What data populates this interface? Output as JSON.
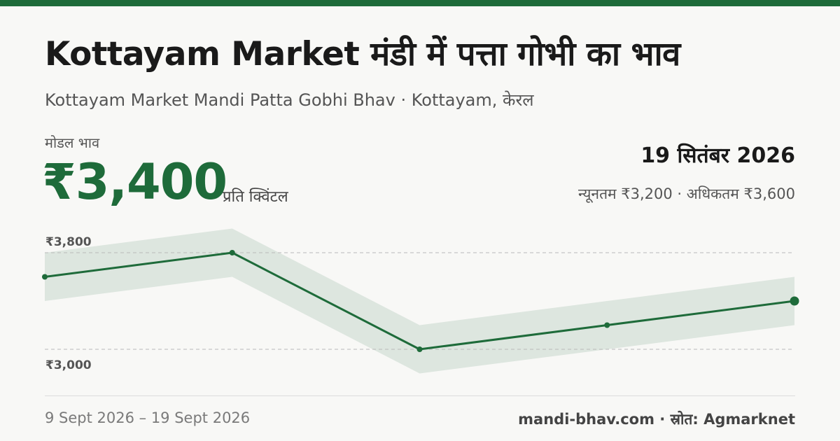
{
  "header": {
    "title": "Kottayam Market मंडी में पत्ता गोभी का भाव",
    "subtitle": "Kottayam Market Mandi Patta Gobhi Bhav · Kottayam, केरल"
  },
  "price": {
    "label": "मोडल भाव",
    "value": "₹3,400",
    "unit": "प्रति क्विंटल"
  },
  "summary": {
    "date": "19 सितंबर 2026",
    "range": "न्यूनतम ₹3,200 · अधिकतम ₹3,600"
  },
  "footer": {
    "date_range": "9 Sept 2026 – 19 Sept 2026",
    "source": "mandi-bhav.com · स्रोत: Agmarknet"
  },
  "colors": {
    "accent": "#1e6b3a",
    "band": "#dde6df",
    "background": "#f8f8f6"
  },
  "chart_data": {
    "type": "line",
    "x": [
      "9 Sept 2026",
      "",
      "",
      "",
      "19 Sept 2026"
    ],
    "series": [
      {
        "values": [
          3600,
          3800,
          3000,
          3200,
          3400
        ]
      }
    ],
    "band_halfwidth": 200,
    "reference_lines": [
      3800,
      3000
    ],
    "tick_labels": [
      "₹3,800",
      "₹3,000"
    ],
    "title": "",
    "xlabel": "",
    "ylabel": "",
    "grid": false
  }
}
